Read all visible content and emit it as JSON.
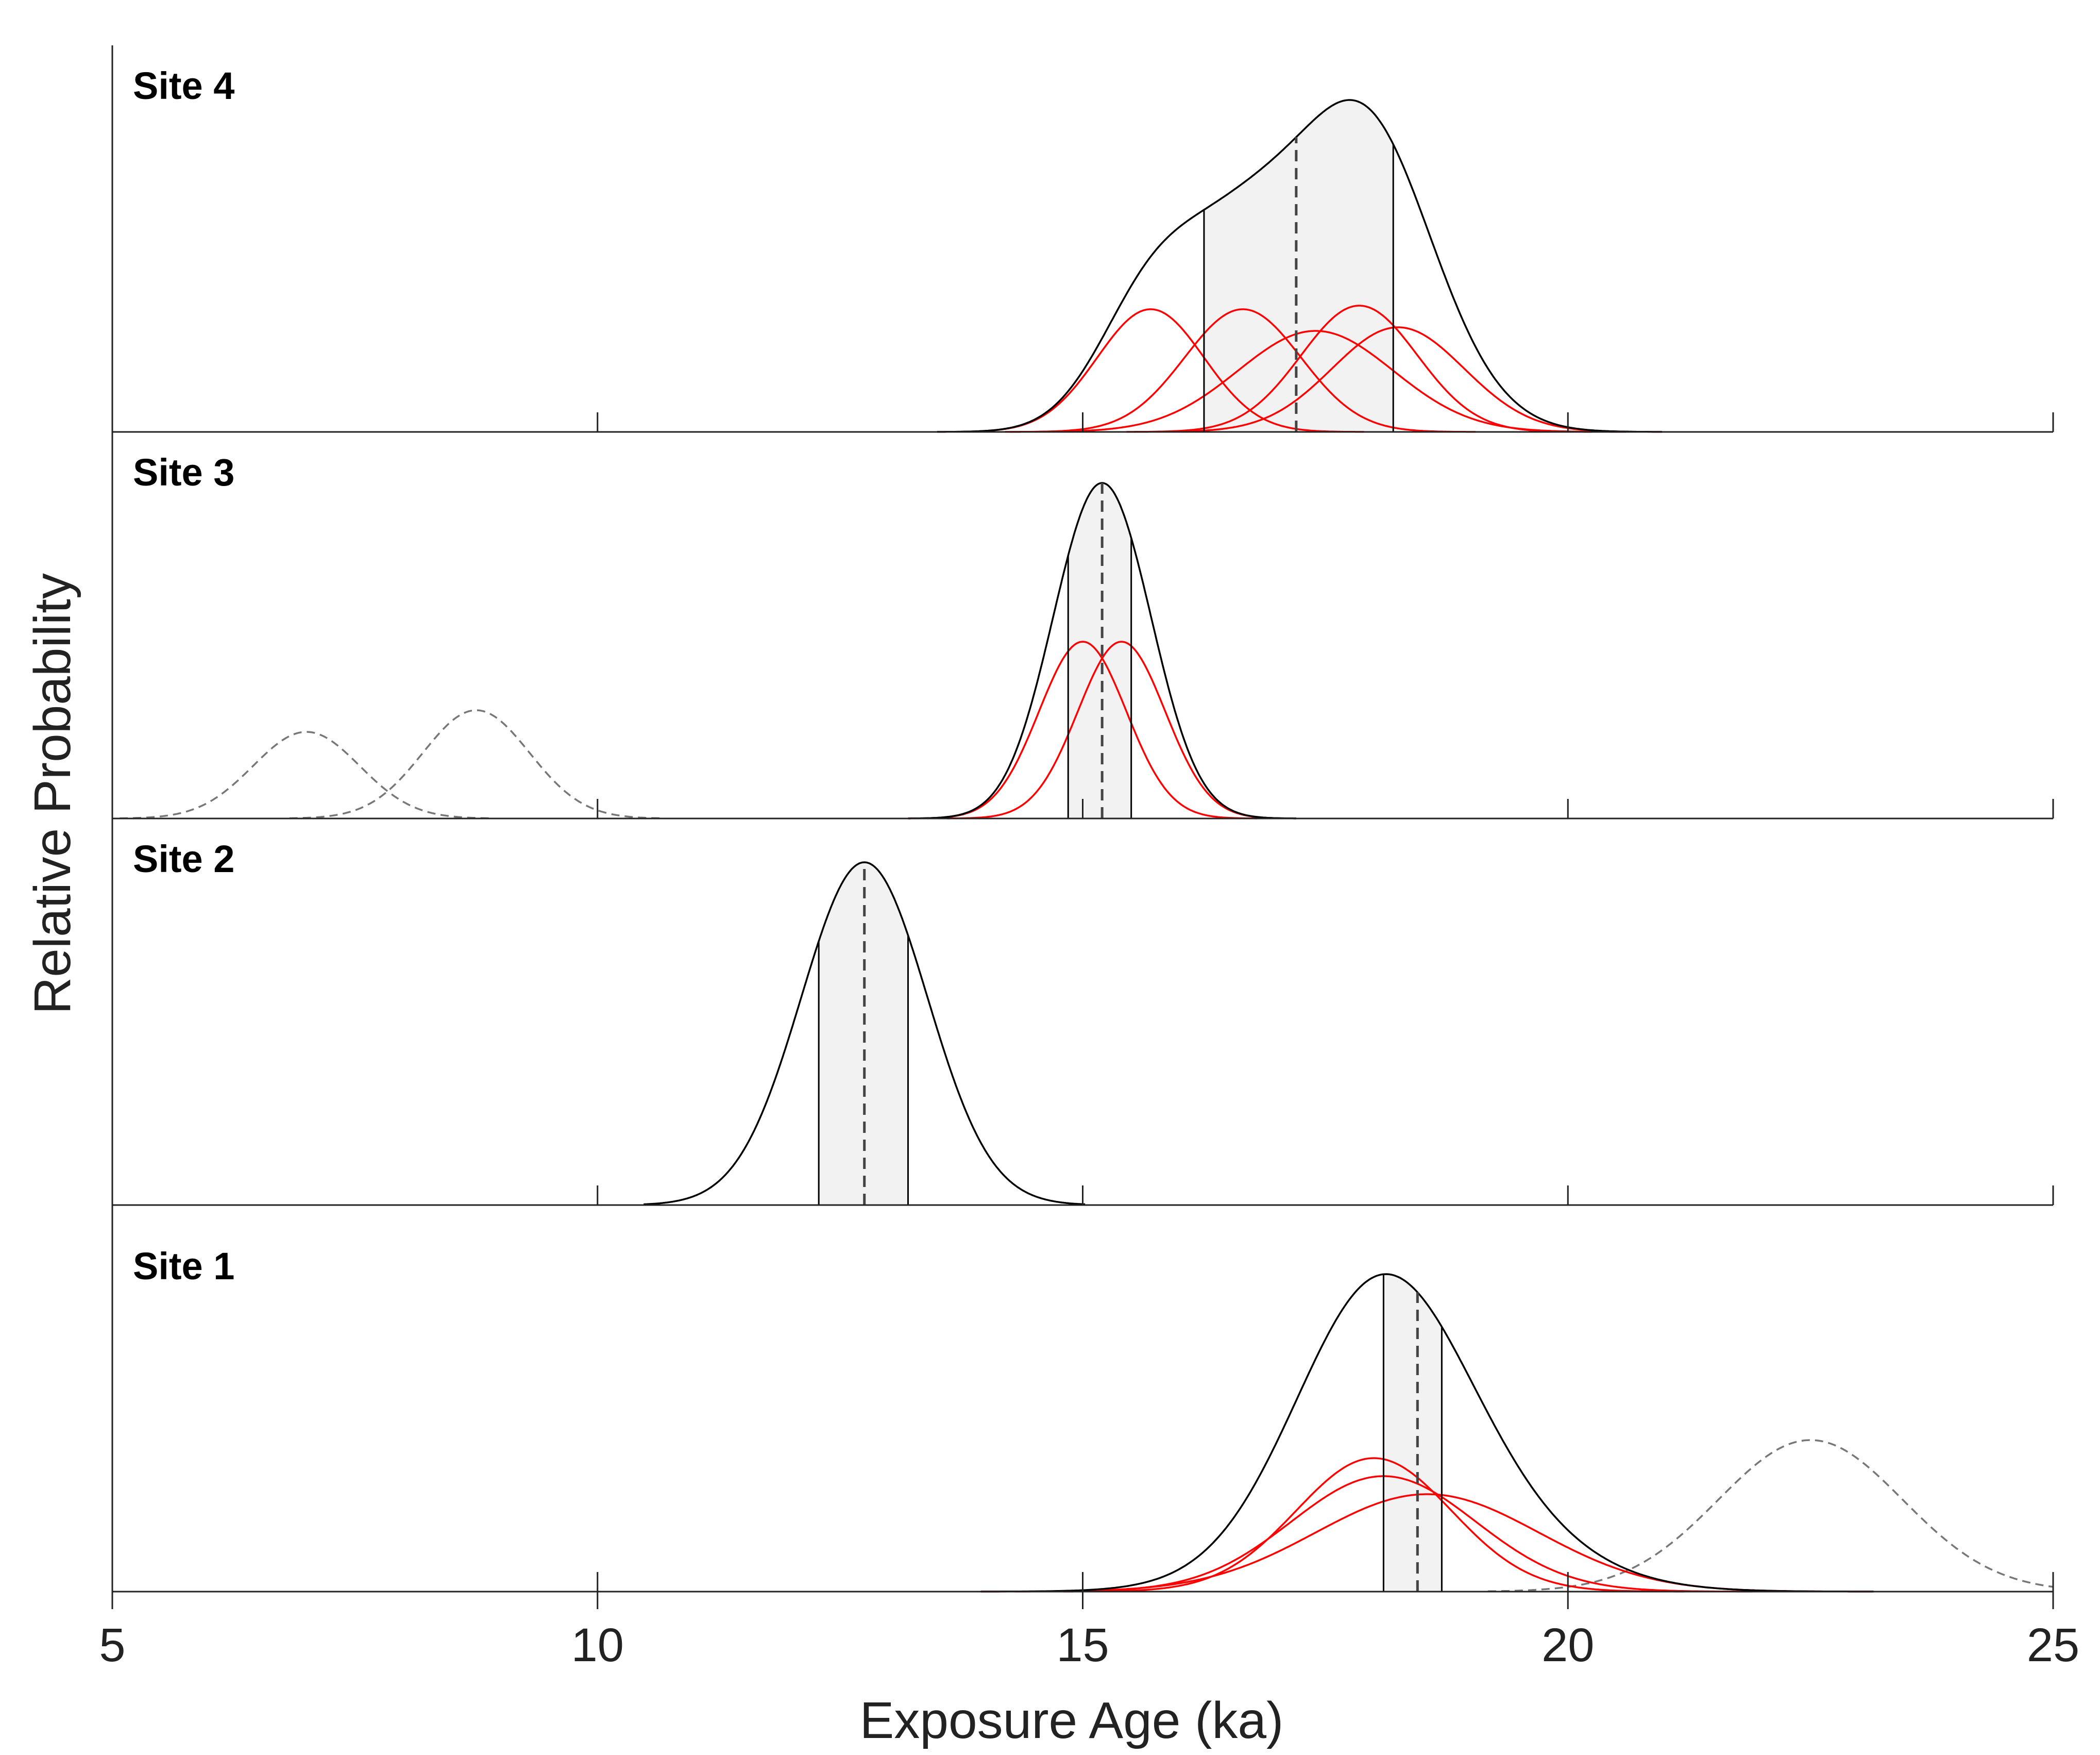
{
  "chart_data": {
    "type": "line",
    "title": "",
    "xlabel": "Exposure Age (ka)",
    "ylabel": "Relative Probability",
    "xlim": [
      5,
      25
    ],
    "xticks": [
      5,
      10,
      15,
      20,
      25
    ],
    "xtick_labels": [
      "5",
      "10",
      "15",
      "20",
      "25"
    ],
    "grid": false,
    "colors": {
      "summed": "#000000",
      "individual": "#ff0000",
      "outlier": "#777777",
      "shade": "#f2f2f2",
      "mean_line": "#444444"
    },
    "panels": [
      {
        "label": "Site 4",
        "summed_peak": 0.92,
        "mean": 17.2,
        "range": [
          16.25,
          18.2
        ],
        "individual": [
          {
            "mu": 15.7,
            "sigma": 0.55,
            "height": 0.34
          },
          {
            "mu": 16.65,
            "sigma": 0.6,
            "height": 0.34
          },
          {
            "mu": 17.4,
            "sigma": 0.8,
            "height": 0.28
          },
          {
            "mu": 17.85,
            "sigma": 0.6,
            "height": 0.35
          },
          {
            "mu": 18.25,
            "sigma": 0.68,
            "height": 0.29
          }
        ],
        "outliers": []
      },
      {
        "label": "Site 3",
        "summed_peak": 0.93,
        "mean": 15.2,
        "range": [
          14.85,
          15.5
        ],
        "individual": [
          {
            "mu": 15.0,
            "sigma": 0.45,
            "height": 0.49
          },
          {
            "mu": 15.4,
            "sigma": 0.45,
            "height": 0.49
          }
        ],
        "outliers": [
          {
            "mu": 7.0,
            "sigma": 0.55,
            "height": 0.24
          },
          {
            "mu": 8.75,
            "sigma": 0.55,
            "height": 0.3
          }
        ]
      },
      {
        "label": "Site 2",
        "summed_peak": 0.95,
        "mean": 12.75,
        "range": [
          12.28,
          13.2
        ],
        "summed_sigma": 0.65,
        "individual": [],
        "outliers": []
      },
      {
        "label": "Site 1",
        "summed_peak": 0.88,
        "mean": 18.45,
        "range": [
          18.1,
          18.7
        ],
        "individual": [
          {
            "mu": 18.0,
            "sigma": 0.8,
            "height": 0.37
          },
          {
            "mu": 18.1,
            "sigma": 0.95,
            "height": 0.32
          },
          {
            "mu": 18.55,
            "sigma": 1.15,
            "height": 0.27
          }
        ],
        "outliers": [
          {
            "mu": 22.5,
            "sigma": 0.95,
            "height": 0.42
          }
        ]
      }
    ]
  }
}
